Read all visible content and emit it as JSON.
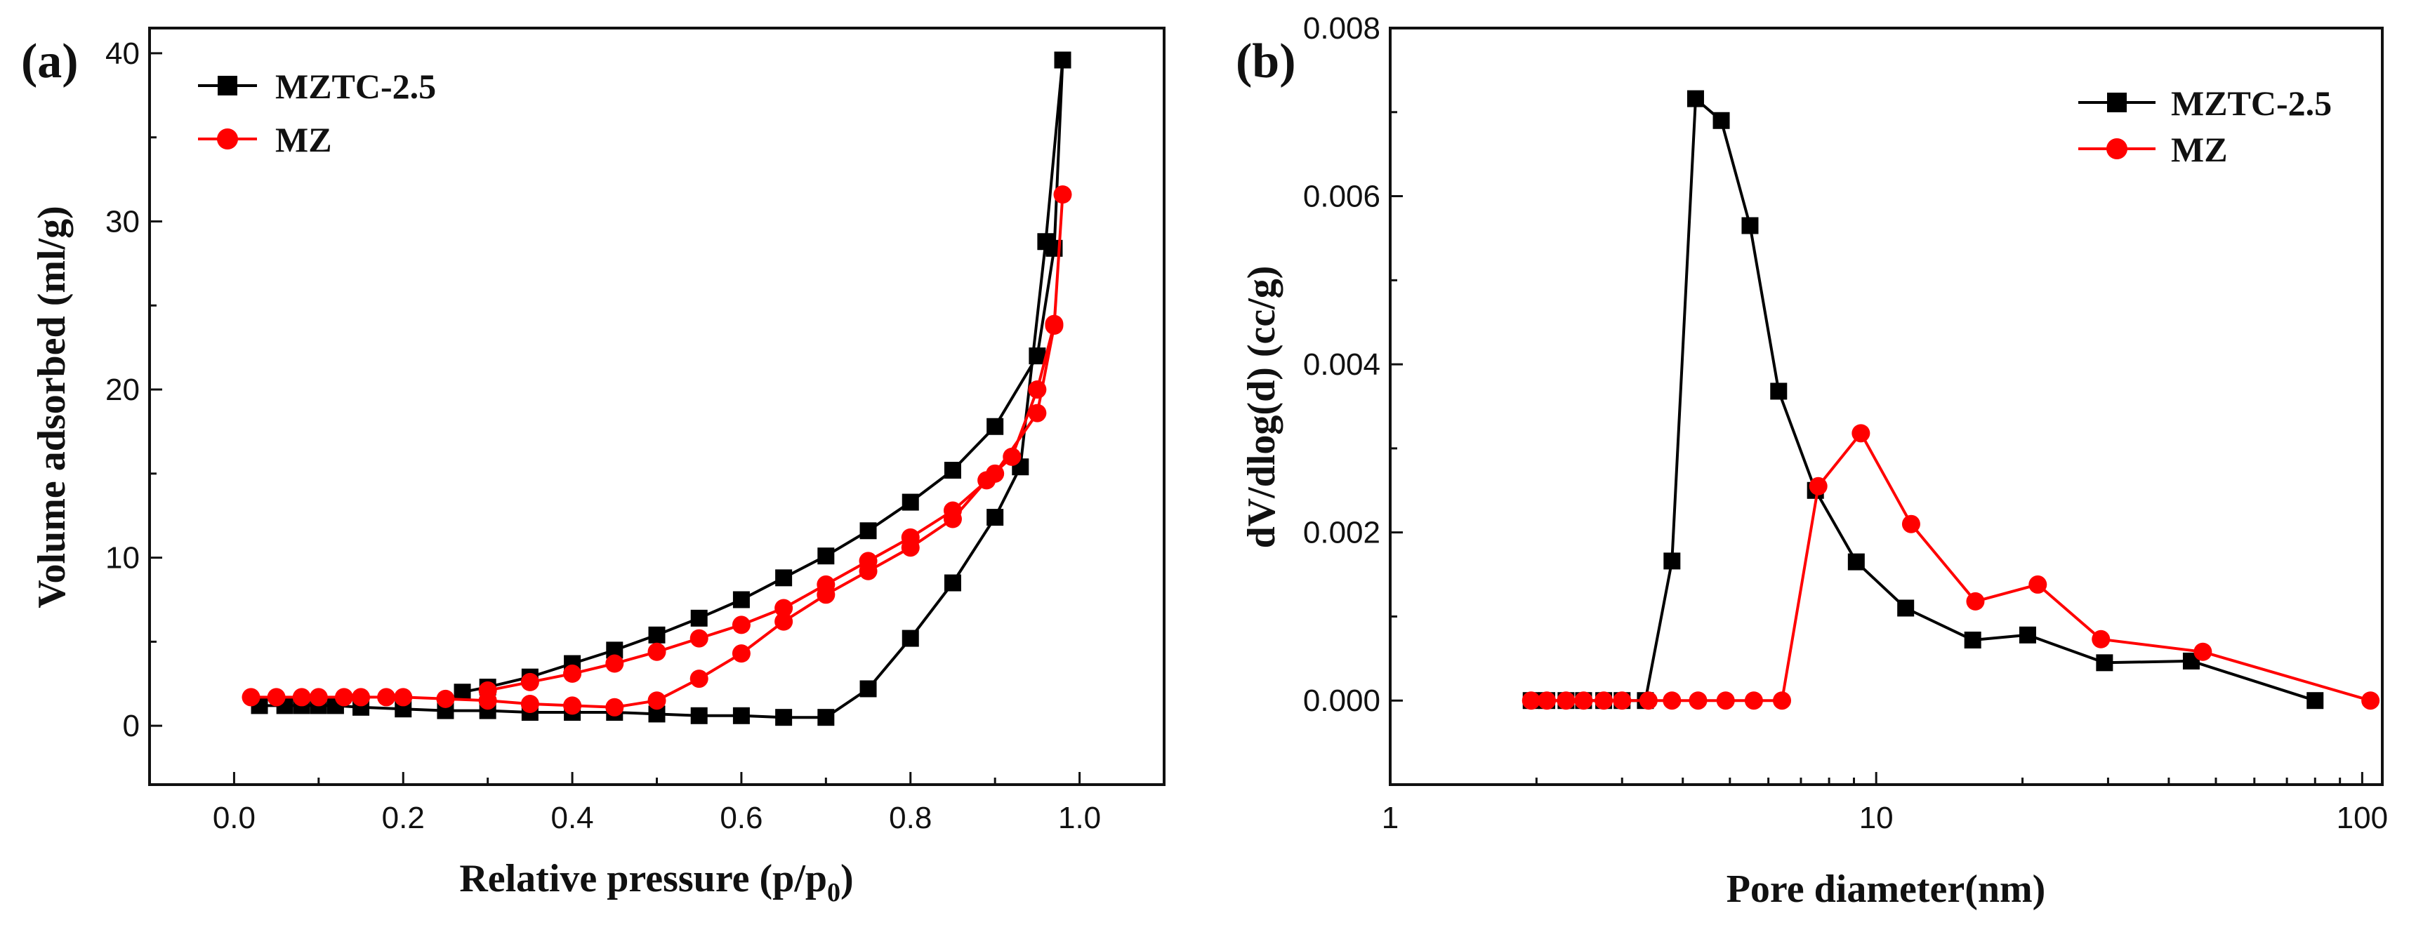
{
  "chart_data": [
    {
      "type": "line",
      "panel_label": "(a)",
      "title": "",
      "xlabel": "Relative pressure (p/p",
      "xlabel_subscript": "0",
      "xlabel_close": ")",
      "ylabel": "Volume adsorbed (ml/g)",
      "xlim": [
        -0.1,
        1.1
      ],
      "ylim": [
        -3.5,
        41.5
      ],
      "xticks": [
        0.0,
        0.2,
        0.4,
        0.6,
        0.8,
        1.0
      ],
      "xtick_labels": [
        "0.0",
        "0.2",
        "0.4",
        "0.6",
        "0.8",
        "1.0"
      ],
      "yticks": [
        0,
        10,
        20,
        30,
        40
      ],
      "ytick_labels": [
        "0",
        "10",
        "20",
        "30",
        "40"
      ],
      "legend_position": "top-left",
      "series": [
        {
          "name": "MZTC-2.5",
          "color": "#000000",
          "marker": "square",
          "x": [
            0.03,
            0.06,
            0.08,
            0.1,
            0.12,
            0.15,
            0.2,
            0.25,
            0.3,
            0.35,
            0.4,
            0.45,
            0.5,
            0.55,
            0.6,
            0.65,
            0.7,
            0.75,
            0.8,
            0.85,
            0.9,
            0.93,
            0.96,
            0.98,
            0.97,
            0.95,
            0.9,
            0.85,
            0.8,
            0.75,
            0.7,
            0.65,
            0.6,
            0.55,
            0.5,
            0.45,
            0.4,
            0.35,
            0.3,
            0.27
          ],
          "y": [
            1.2,
            1.2,
            1.2,
            1.2,
            1.2,
            1.1,
            1.0,
            0.9,
            0.9,
            0.8,
            0.8,
            0.8,
            0.7,
            0.6,
            0.6,
            0.5,
            0.5,
            2.2,
            5.2,
            8.5,
            12.4,
            15.4,
            28.8,
            39.6,
            28.4,
            22.0,
            17.8,
            15.2,
            13.3,
            11.6,
            10.1,
            8.8,
            7.5,
            6.4,
            5.4,
            4.5,
            3.7,
            2.9,
            2.3,
            2.0
          ]
        },
        {
          "name": "MZ",
          "color": "#ff0000",
          "marker": "circle",
          "x": [
            0.02,
            0.05,
            0.08,
            0.1,
            0.13,
            0.15,
            0.18,
            0.2,
            0.25,
            0.3,
            0.35,
            0.4,
            0.45,
            0.5,
            0.55,
            0.6,
            0.65,
            0.7,
            0.75,
            0.8,
            0.85,
            0.89,
            0.92,
            0.95,
            0.97,
            0.98,
            0.97,
            0.95,
            0.9,
            0.85,
            0.8,
            0.75,
            0.7,
            0.65,
            0.6,
            0.55,
            0.5,
            0.45,
            0.4,
            0.35,
            0.3
          ],
          "y": [
            1.7,
            1.7,
            1.7,
            1.7,
            1.7,
            1.7,
            1.7,
            1.7,
            1.6,
            1.5,
            1.3,
            1.2,
            1.1,
            1.5,
            2.8,
            4.3,
            6.2,
            7.8,
            9.2,
            10.6,
            12.3,
            14.6,
            16.0,
            20.0,
            23.9,
            31.6,
            23.8,
            18.6,
            15.0,
            12.8,
            11.2,
            9.8,
            8.4,
            7.0,
            6.0,
            5.2,
            4.4,
            3.7,
            3.1,
            2.6,
            2.1
          ]
        }
      ]
    },
    {
      "type": "line",
      "panel_label": "(b)",
      "title": "",
      "xlabel": "Pore diameter(nm)",
      "ylabel": "dV/dlog(d) (cc/g)",
      "xscale": "log",
      "xlim": [
        1,
        110
      ],
      "ylim": [
        -0.001,
        0.008
      ],
      "xticks": [
        1,
        10,
        100
      ],
      "xtick_labels": [
        "1",
        "10",
        "100"
      ],
      "yticks": [
        0.0,
        0.002,
        0.004,
        0.006,
        0.008
      ],
      "ytick_labels": [
        "0.000",
        "0.002",
        "0.004",
        "0.006",
        "0.008"
      ],
      "legend_position": "top-right",
      "series": [
        {
          "name": "MZTC-2.5",
          "color": "#000000",
          "marker": "square",
          "x": [
            1.95,
            2.1,
            2.3,
            2.5,
            2.75,
            3.0,
            3.35,
            3.8,
            4.25,
            4.8,
            5.5,
            6.3,
            7.5,
            9.1,
            11.5,
            15.8,
            20.5,
            29.5,
            44.5,
            80.0
          ],
          "y": [
            0.0,
            0.0,
            0.0,
            0.0,
            0.0,
            0.0,
            0.0,
            0.00166,
            0.00716,
            0.0069,
            0.00565,
            0.00368,
            0.0025,
            0.00165,
            0.0011,
            0.00072,
            0.00078,
            0.00045,
            0.00047,
            0.0
          ]
        },
        {
          "name": "MZ",
          "color": "#ff0000",
          "marker": "circle",
          "x": [
            1.95,
            2.1,
            2.3,
            2.5,
            2.75,
            3.0,
            3.4,
            3.8,
            4.3,
            4.9,
            5.6,
            6.4,
            7.6,
            9.3,
            11.8,
            16.0,
            21.5,
            29.0,
            47.0,
            104.0
          ],
          "y": [
            0.0,
            0.0,
            0.0,
            0.0,
            0.0,
            0.0,
            0.0,
            0.0,
            0.0,
            0.0,
            0.0,
            0.0,
            0.00255,
            0.00318,
            0.0021,
            0.00118,
            0.00138,
            0.00073,
            0.00058,
            0.0
          ]
        }
      ]
    }
  ]
}
